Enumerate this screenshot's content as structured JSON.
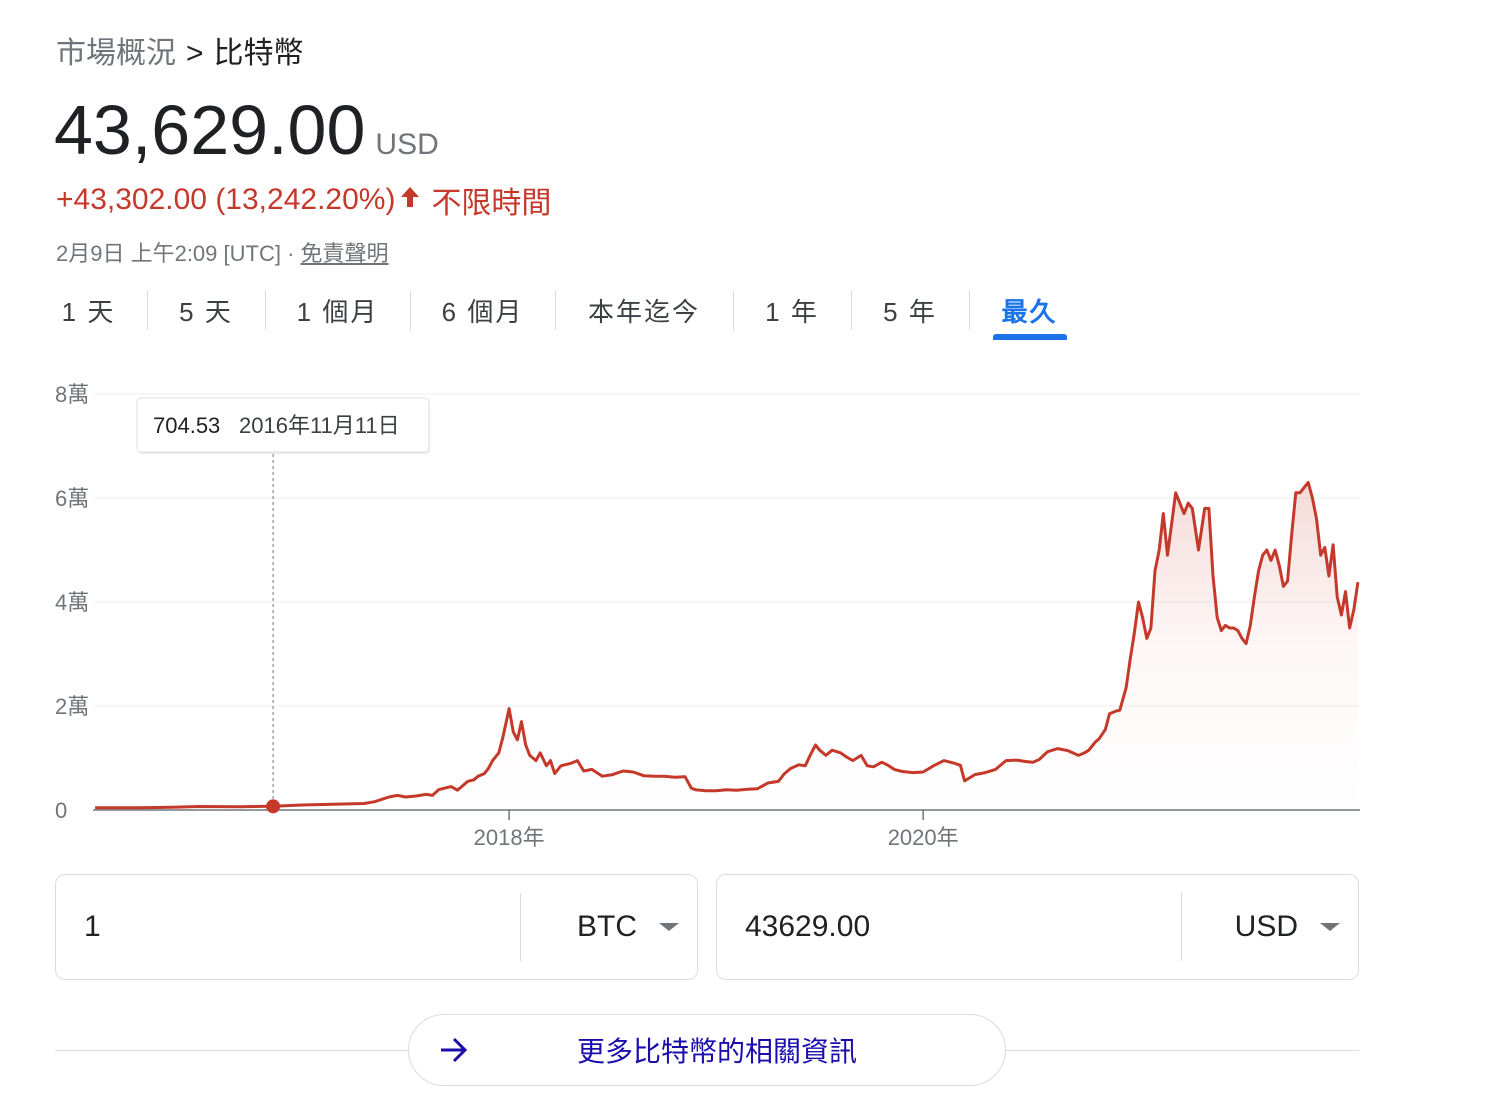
{
  "breadcrumb": {
    "parent": "市場概況",
    "separator": ">",
    "current": "比特幣"
  },
  "quote": {
    "price": "43,629.00",
    "currency": "USD",
    "change": "+43,302.00 (13,242.20%)",
    "period": "不限時間",
    "timestamp": "2月9日 上午2:09 [UTC] · ",
    "disclaimer": "免責聲明"
  },
  "tabs": [
    {
      "label": "1 天"
    },
    {
      "label": "5 天"
    },
    {
      "label": "1 個月"
    },
    {
      "label": "6 個月"
    },
    {
      "label": "本年迄今"
    },
    {
      "label": "1 年"
    },
    {
      "label": "5 年"
    },
    {
      "label": "最久",
      "active": true
    }
  ],
  "colors": {
    "accent": "#1a73e8",
    "down_line": "#c5392a",
    "link": "#1a0dab"
  },
  "chart_data": {
    "type": "area",
    "title": "",
    "xlabel": "",
    "ylabel": "",
    "y_ticks": [
      {
        "value": 0,
        "label": "0"
      },
      {
        "value": 20000,
        "label": "2萬"
      },
      {
        "value": 40000,
        "label": "4萬"
      },
      {
        "value": 60000,
        "label": "6萬"
      },
      {
        "value": 80000,
        "label": "8萬"
      }
    ],
    "x_ticks": [
      {
        "value": 2018,
        "label": "2018年"
      },
      {
        "value": 2020,
        "label": "2020年"
      }
    ],
    "ylim": [
      0,
      80000
    ],
    "xlim": [
      2015.99,
      2022.11
    ],
    "grid": true,
    "series": [
      {
        "x": [
          2016.0,
          2016.1,
          2016.2,
          2016.3,
          2016.4,
          2016.5,
          2016.6,
          2016.7,
          2016.8,
          2016.86,
          2017.0,
          2017.1,
          2017.2,
          2017.3,
          2017.35,
          2017.42,
          2017.46,
          2017.5,
          2017.55,
          2017.6,
          2017.63,
          2017.66,
          2017.7,
          2017.72,
          2017.75,
          2017.78,
          2017.8,
          2017.83,
          2017.85,
          2017.88,
          2017.9,
          2017.92,
          2017.95,
          2017.97,
          2018.0,
          2018.02,
          2018.04,
          2018.06,
          2018.08,
          2018.1,
          2018.13,
          2018.15,
          2018.18,
          2018.2,
          2018.22,
          2018.25,
          2018.3,
          2018.33,
          2018.36,
          2018.4,
          2018.45,
          2018.5,
          2018.55,
          2018.6,
          2018.65,
          2018.7,
          2018.75,
          2018.8,
          2018.85,
          2018.88,
          2018.9,
          2018.95,
          2019.0,
          2019.05,
          2019.1,
          2019.15,
          2019.2,
          2019.25,
          2019.3,
          2019.33,
          2019.36,
          2019.4,
          2019.43,
          2019.46,
          2019.48,
          2019.5,
          2019.53,
          2019.56,
          2019.6,
          2019.63,
          2019.66,
          2019.7,
          2019.73,
          2019.76,
          2019.8,
          2019.83,
          2019.86,
          2019.9,
          2019.95,
          2020.0,
          2020.05,
          2020.1,
          2020.15,
          2020.18,
          2020.2,
          2020.25,
          2020.3,
          2020.35,
          2020.4,
          2020.45,
          2020.5,
          2020.53,
          2020.56,
          2020.6,
          2020.65,
          2020.7,
          2020.75,
          2020.78,
          2020.8,
          2020.83,
          2020.85,
          2020.88,
          2020.9,
          2020.93,
          2020.95,
          2020.98,
          2021.0,
          2021.02,
          2021.04,
          2021.06,
          2021.08,
          2021.1,
          2021.12,
          2021.14,
          2021.16,
          2021.18,
          2021.2,
          2021.22,
          2021.24,
          2021.26,
          2021.28,
          2021.3,
          2021.33,
          2021.36,
          2021.38,
          2021.4,
          2021.42,
          2021.44,
          2021.46,
          2021.48,
          2021.5,
          2021.52,
          2021.54,
          2021.56,
          2021.58,
          2021.6,
          2021.62,
          2021.64,
          2021.66,
          2021.68,
          2021.7,
          2021.72,
          2021.74,
          2021.76,
          2021.78,
          2021.8,
          2021.82,
          2021.84,
          2021.86,
          2021.88,
          2021.9,
          2021.92,
          2021.94,
          2021.96,
          2021.98,
          2022.0,
          2022.02,
          2022.04,
          2022.06,
          2022.08,
          2022.1
        ],
        "values": [
          430,
          420,
          420,
          480,
          550,
          670,
          650,
          610,
          700,
          704,
          960,
          1050,
          1150,
          1250,
          1600,
          2500,
          2800,
          2500,
          2700,
          3000,
          2800,
          3900,
          4300,
          4500,
          3800,
          4800,
          5500,
          5800,
          6500,
          7000,
          8000,
          9500,
          11000,
          14000,
          19500,
          15000,
          13500,
          17000,
          12500,
          10500,
          9500,
          11000,
          8500,
          9500,
          7000,
          8500,
          9000,
          9500,
          7500,
          7800,
          6500,
          6800,
          7500,
          7300,
          6600,
          6500,
          6500,
          6300,
          6400,
          4200,
          3900,
          3700,
          3700,
          3900,
          3800,
          4000,
          4100,
          5200,
          5500,
          7000,
          8000,
          8700,
          8500,
          11000,
          12500,
          11500,
          10500,
          11500,
          11000,
          10200,
          9500,
          10500,
          8500,
          8300,
          9200,
          8600,
          7800,
          7400,
          7200,
          7300,
          8500,
          9500,
          9000,
          8600,
          5600,
          6800,
          7200,
          7800,
          9500,
          9600,
          9300,
          9200,
          9700,
          11200,
          11800,
          11400,
          10500,
          11000,
          11500,
          13000,
          13700,
          15500,
          18500,
          19000,
          19200,
          23500,
          29000,
          34000,
          40000,
          37000,
          33000,
          35000,
          46000,
          50000,
          57000,
          49000,
          55000,
          61000,
          59000,
          57000,
          59000,
          58000,
          50000,
          58000,
          58000,
          45000,
          37000,
          34500,
          35500,
          35000,
          35000,
          34500,
          33000,
          32000,
          35500,
          41000,
          46000,
          49000,
          50000,
          48000,
          50000,
          47000,
          43000,
          44000,
          53000,
          61000,
          61000,
          62000,
          63000,
          60000,
          56000,
          49000,
          50500,
          45000,
          51000,
          41000,
          37500,
          42000,
          35000,
          38500,
          43800
        ]
      }
    ],
    "tooltip": {
      "value": "704.53",
      "date": "2016年11月11日",
      "x": 2016.86,
      "y": 704.53
    }
  },
  "converter": {
    "from": {
      "amount": "1",
      "unit": "BTC"
    },
    "to": {
      "amount": "43629.00",
      "unit": "USD"
    }
  },
  "more_link": {
    "label": "更多比特幣的相關資訊"
  }
}
